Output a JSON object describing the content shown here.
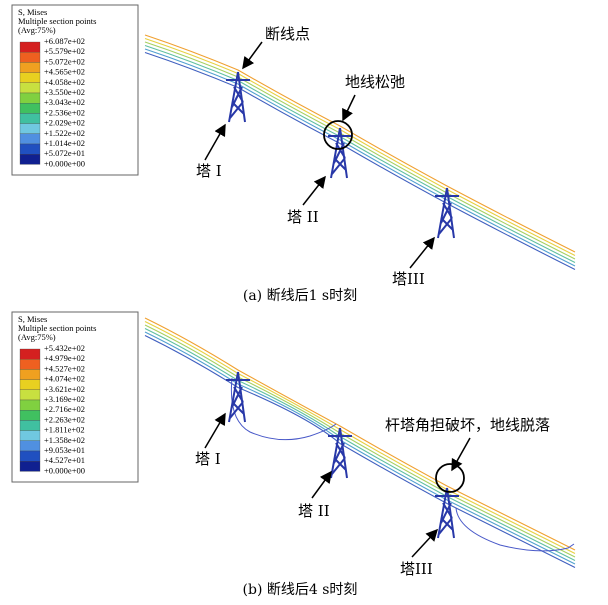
{
  "panels": [
    {
      "legend": {
        "lines": [
          "S, Mises",
          "Multiple section points",
          "(Avg:75%)"
        ],
        "values": [
          "+6.087e+02",
          "+5.579e+02",
          "+5.072e+02",
          "+4.565e+02",
          "+4.058e+02",
          "+3.550e+02",
          "+3.043e+02",
          "+2.536e+02",
          "+2.029e+02",
          "+1.522e+02",
          "+1.014e+02",
          "+5.072e+01",
          "+0.000e+00"
        ]
      },
      "annotations": [
        "断线点",
        "地线松弛",
        "塔 I",
        "塔 II",
        "塔III"
      ],
      "caption": "(a) 断线后1 s时刻"
    },
    {
      "legend": {
        "lines": [
          "S, Mises",
          "Multiple section points",
          "(Avg:75%)"
        ],
        "values": [
          "+5.432e+02",
          "+4.979e+02",
          "+4.527e+02",
          "+4.074e+02",
          "+3.621e+02",
          "+3.169e+02",
          "+2.716e+02",
          "+2.263e+02",
          "+1.811e+02",
          "+1.358e+02",
          "+9.053e+01",
          "+4.527e+01",
          "+0.000e+00"
        ]
      },
      "annotations": [
        "杆塔角担破坏，地线脱落",
        "塔 I",
        "塔 II",
        "塔III"
      ],
      "caption": "(b) 断线后4 s时刻"
    }
  ]
}
